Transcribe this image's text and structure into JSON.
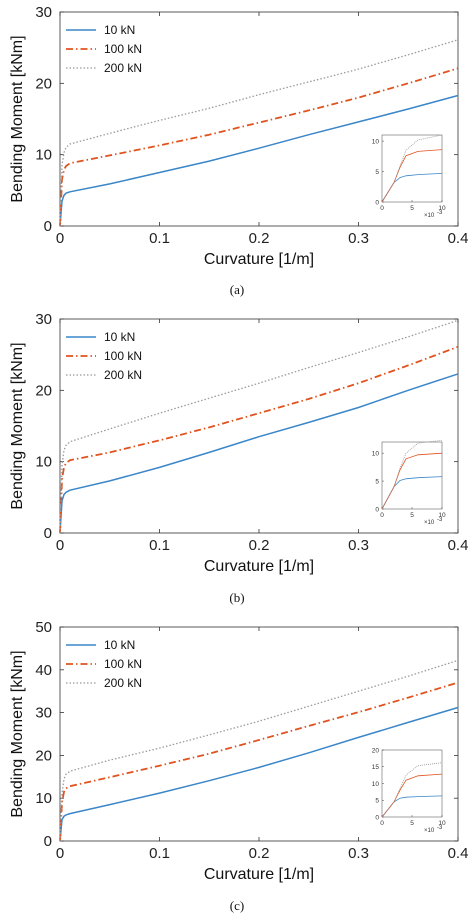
{
  "colors": {
    "10 kN": "#3a86c8",
    "100 kN": "#e0531f",
    "200 kN": "#9b9b9b"
  },
  "chart_data": [
    {
      "type": "line",
      "caption": "(a)",
      "xlabel": "Curvature [1/m]",
      "ylabel": "Bending Moment [kNm]",
      "xlim": [
        0,
        0.4
      ],
      "ylim": [
        0,
        30
      ],
      "xticks": [
        0,
        0.1,
        0.2,
        0.3,
        0.4
      ],
      "xtick_labels": [
        "0",
        "0.1",
        "0.2",
        "0.3",
        "0.4"
      ],
      "yticks": [
        0,
        10,
        20,
        30
      ],
      "ytick_labels": [
        "0",
        "10",
        "20",
        "30"
      ],
      "legend_position": "top-left",
      "series": [
        {
          "name": "10 kN",
          "style": "solid",
          "x": [
            0,
            0.002,
            0.004,
            0.006,
            0.01,
            0.05,
            0.1,
            0.15,
            0.2,
            0.25,
            0.3,
            0.35,
            0.4
          ],
          "y": [
            0,
            3.5,
            4.3,
            4.6,
            4.8,
            5.9,
            7.5,
            9.1,
            10.9,
            12.8,
            14.6,
            16.4,
            18.3
          ]
        },
        {
          "name": "100 kN",
          "style": "dashdot",
          "x": [
            0,
            0.002,
            0.004,
            0.006,
            0.01,
            0.05,
            0.1,
            0.15,
            0.2,
            0.25,
            0.3,
            0.35,
            0.4
          ],
          "y": [
            0,
            6.5,
            7.9,
            8.4,
            8.8,
            9.9,
            11.3,
            12.8,
            14.5,
            16.2,
            18.0,
            20.0,
            22.1
          ]
        },
        {
          "name": "200 kN",
          "style": "dotted",
          "x": [
            0,
            0.002,
            0.004,
            0.006,
            0.01,
            0.05,
            0.1,
            0.15,
            0.2,
            0.25,
            0.3,
            0.35,
            0.4
          ],
          "y": [
            0,
            8.5,
            10.3,
            11.0,
            11.5,
            13.0,
            14.8,
            16.5,
            18.4,
            20.2,
            22.0,
            24.0,
            26.1
          ]
        }
      ],
      "inset": {
        "xlim": [
          0,
          0.01
        ],
        "ylim": [
          0,
          11
        ],
        "xticks": [
          0,
          0.005,
          0.01
        ],
        "xtick_labels": [
          "0",
          "5",
          "10"
        ],
        "yticks": [
          0,
          5,
          10
        ],
        "ytick_labels": [
          "0",
          "5",
          "10"
        ],
        "x_multiplier": "×10",
        "x_exponent": "-3",
        "series": [
          {
            "name": "10 kN",
            "x": [
              0,
              0.002,
              0.003,
              0.004,
              0.006,
              0.01
            ],
            "y": [
              0,
              3.2,
              4.0,
              4.3,
              4.5,
              4.7
            ]
          },
          {
            "name": "100 kN",
            "x": [
              0,
              0.002,
              0.003,
              0.004,
              0.006,
              0.01
            ],
            "y": [
              0,
              3.2,
              5.7,
              7.6,
              8.3,
              8.6
            ]
          },
          {
            "name": "200 kN",
            "x": [
              0,
              0.002,
              0.003,
              0.004,
              0.006,
              0.01
            ],
            "y": [
              0,
              3.2,
              5.9,
              8.5,
              10.2,
              11.0
            ]
          }
        ]
      }
    },
    {
      "type": "line",
      "caption": "(b)",
      "xlabel": "Curvature [1/m]",
      "ylabel": "Bending Moment [kNm]",
      "xlim": [
        0,
        0.4
      ],
      "ylim": [
        0,
        30
      ],
      "xticks": [
        0,
        0.1,
        0.2,
        0.3,
        0.4
      ],
      "xtick_labels": [
        "0",
        "0.1",
        "0.2",
        "0.3",
        "0.4"
      ],
      "yticks": [
        0,
        10,
        20,
        30
      ],
      "ytick_labels": [
        "0",
        "10",
        "20",
        "30"
      ],
      "legend_position": "top-left",
      "series": [
        {
          "name": "10 kN",
          "style": "solid",
          "x": [
            0,
            0.002,
            0.004,
            0.006,
            0.01,
            0.05,
            0.1,
            0.15,
            0.2,
            0.25,
            0.3,
            0.35,
            0.4
          ],
          "y": [
            0,
            4.5,
            5.4,
            5.7,
            6.0,
            7.3,
            9.2,
            11.3,
            13.5,
            15.5,
            17.6,
            20.0,
            22.3
          ]
        },
        {
          "name": "100 kN",
          "style": "dashdot",
          "x": [
            0,
            0.002,
            0.004,
            0.006,
            0.01,
            0.05,
            0.1,
            0.15,
            0.2,
            0.25,
            0.3,
            0.35,
            0.4
          ],
          "y": [
            0,
            7.5,
            9.2,
            9.8,
            10.2,
            11.3,
            13.0,
            14.8,
            16.8,
            18.8,
            21.0,
            23.5,
            26.1
          ]
        },
        {
          "name": "200 kN",
          "style": "dotted",
          "x": [
            0,
            0.002,
            0.004,
            0.006,
            0.01,
            0.05,
            0.1,
            0.15,
            0.2,
            0.25,
            0.3,
            0.35,
            0.4
          ],
          "y": [
            0,
            9.5,
            11.6,
            12.3,
            12.8,
            14.6,
            16.8,
            18.9,
            21.0,
            23.2,
            25.3,
            27.5,
            29.8
          ]
        }
      ],
      "inset": {
        "xlim": [
          0,
          0.01
        ],
        "ylim": [
          0,
          12
        ],
        "xticks": [
          0,
          0.005,
          0.01
        ],
        "xtick_labels": [
          "0",
          "5",
          "10"
        ],
        "yticks": [
          0,
          5,
          10
        ],
        "ytick_labels": [
          "0",
          "5",
          "10"
        ],
        "x_multiplier": "×10",
        "x_exponent": "-3",
        "series": [
          {
            "name": "10 kN",
            "x": [
              0,
              0.002,
              0.003,
              0.004,
              0.006,
              0.01
            ],
            "y": [
              0,
              4.0,
              5.1,
              5.4,
              5.6,
              5.8
            ]
          },
          {
            "name": "100 kN",
            "x": [
              0,
              0.002,
              0.003,
              0.004,
              0.006,
              0.01
            ],
            "y": [
              0,
              4.0,
              7.0,
              9.0,
              9.7,
              10.0
            ]
          },
          {
            "name": "200 kN",
            "x": [
              0,
              0.002,
              0.003,
              0.004,
              0.006,
              0.01
            ],
            "y": [
              0,
              4.0,
              7.3,
              10.0,
              11.8,
              12.3
            ]
          }
        ]
      }
    },
    {
      "type": "line",
      "caption": "(c)",
      "xlabel": "Curvature [1/m]",
      "ylabel": "Bending Moment [kNm]",
      "xlim": [
        0,
        0.4
      ],
      "ylim": [
        0,
        50
      ],
      "xticks": [
        0,
        0.1,
        0.2,
        0.3,
        0.4
      ],
      "xtick_labels": [
        "0",
        "0.1",
        "0.2",
        "0.3",
        "0.4"
      ],
      "yticks": [
        0,
        10,
        20,
        30,
        40,
        50
      ],
      "ytick_labels": [
        "0",
        "10",
        "20",
        "30",
        "40",
        "50"
      ],
      "legend_position": "top-left",
      "series": [
        {
          "name": "10 kN",
          "style": "solid",
          "x": [
            0,
            0.002,
            0.004,
            0.006,
            0.01,
            0.05,
            0.1,
            0.15,
            0.2,
            0.25,
            0.3,
            0.35,
            0.4
          ],
          "y": [
            0,
            5.0,
            5.8,
            6.1,
            6.4,
            8.5,
            11.2,
            14.1,
            17.2,
            20.6,
            24.2,
            27.7,
            31.2
          ]
        },
        {
          "name": "100 kN",
          "style": "dashdot",
          "x": [
            0,
            0.002,
            0.004,
            0.006,
            0.01,
            0.05,
            0.1,
            0.15,
            0.2,
            0.25,
            0.3,
            0.35,
            0.4
          ],
          "y": [
            0,
            9.0,
            11.5,
            12.3,
            12.8,
            14.9,
            17.6,
            20.4,
            23.6,
            26.9,
            30.1,
            33.5,
            37.0
          ]
        },
        {
          "name": "200 kN",
          "style": "dotted",
          "x": [
            0,
            0.002,
            0.004,
            0.006,
            0.01,
            0.05,
            0.1,
            0.15,
            0.2,
            0.25,
            0.3,
            0.35,
            0.4
          ],
          "y": [
            0,
            11.0,
            14.5,
            15.6,
            16.3,
            18.9,
            21.7,
            24.8,
            28.0,
            31.5,
            35.0,
            38.5,
            42.2
          ]
        }
      ],
      "inset": {
        "xlim": [
          0,
          0.01
        ],
        "ylim": [
          0,
          20
        ],
        "xticks": [
          0,
          0.005,
          0.01
        ],
        "xtick_labels": [
          "0",
          "5",
          "10"
        ],
        "yticks": [
          0,
          5,
          10,
          15,
          20
        ],
        "ytick_labels": [
          "0",
          "5",
          "10",
          "15",
          "20"
        ],
        "x_multiplier": "×10",
        "x_exponent": "-3",
        "series": [
          {
            "name": "10 kN",
            "x": [
              0,
              0.002,
              0.003,
              0.004,
              0.006,
              0.01
            ],
            "y": [
              0,
              4.5,
              5.6,
              5.9,
              6.1,
              6.3
            ]
          },
          {
            "name": "100 kN",
            "x": [
              0,
              0.002,
              0.003,
              0.004,
              0.006,
              0.01
            ],
            "y": [
              0,
              4.5,
              8.0,
              11.0,
              12.3,
              12.8
            ]
          },
          {
            "name": "200 kN",
            "x": [
              0,
              0.002,
              0.003,
              0.004,
              0.006,
              0.01
            ],
            "y": [
              0,
              4.5,
              8.5,
              12.5,
              15.3,
              16.2
            ]
          }
        ]
      }
    }
  ]
}
